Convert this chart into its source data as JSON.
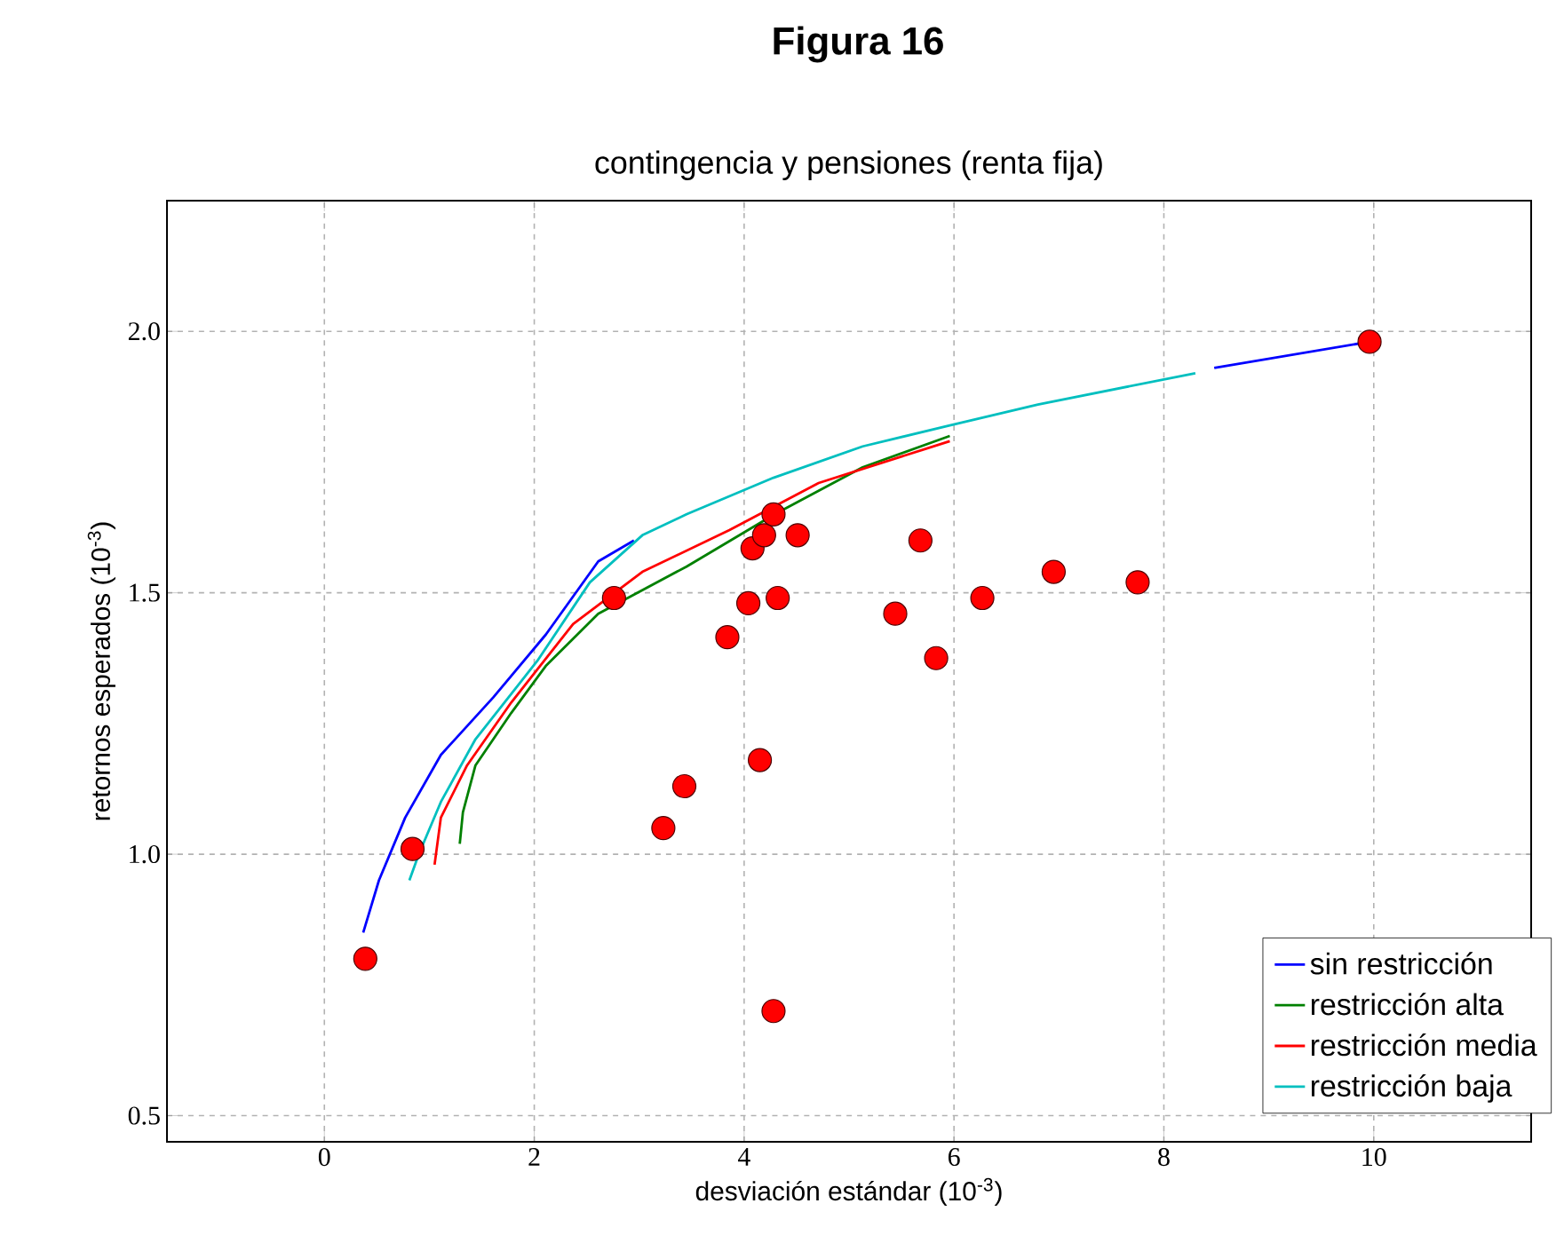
{
  "chart_data": {
    "type": "line",
    "title": "Figura 16",
    "subtitle": "contingencia y pensiones (renta fija)",
    "xlabel": "desviación estándar (10$^{-3}$)",
    "ylabel": "retornos esperados (10$^{-3}$)",
    "xlim": [
      -1.5,
      11.5
    ],
    "ylim": [
      0.45,
      2.25
    ],
    "xticks": [
      0,
      2,
      4,
      6,
      8,
      10
    ],
    "yticks": [
      {
        "value": 0.5,
        "label": "0.5"
      },
      {
        "value": 1.0,
        "label": "1.0"
      },
      {
        "value": 1.5,
        "label": "1.5"
      },
      {
        "value": 2.0,
        "label": "2.0"
      }
    ],
    "grid": true,
    "legend": "bottom right",
    "series": [
      {
        "name": "sin restricción",
        "color": "#0000ff",
        "x": [
          0.37,
          0.52,
          0.77,
          1.11,
          1.61,
          2.11,
          2.61,
          2.95,
          3.45,
          4.28,
          5.13,
          5.96,
          6.8,
          8.48,
          9.96
        ],
        "values": [
          0.85,
          0.95,
          1.07,
          1.19,
          1.3,
          1.42,
          1.56,
          1.6,
          null,
          null,
          null,
          null,
          null,
          1.93,
          1.98
        ]
      },
      {
        "name": "restricción alta",
        "color": "#008000",
        "x": [
          1.29,
          1.32,
          1.44,
          1.78,
          2.11,
          2.61,
          3.45,
          4.29,
          5.13,
          5.96
        ],
        "values": [
          1.02,
          1.08,
          1.17,
          1.27,
          1.36,
          1.46,
          1.55,
          1.65,
          1.74,
          1.8
        ]
      },
      {
        "name": "restricción media",
        "color": "#ff0000",
        "x": [
          1.05,
          1.11,
          1.36,
          1.78,
          2.37,
          3.03,
          3.86,
          4.71,
          5.96
        ],
        "values": [
          0.98,
          1.07,
          1.17,
          1.29,
          1.44,
          1.54,
          1.62,
          1.71,
          1.79
        ]
      },
      {
        "name": "restricción baja",
        "color": "#00bfbf",
        "x": [
          0.81,
          0.9,
          1.11,
          1.44,
          2.03,
          2.53,
          3.03,
          3.45,
          4.28,
          5.13,
          5.96,
          6.8,
          8.3
        ],
        "values": [
          0.95,
          1.0,
          1.1,
          1.22,
          1.37,
          1.52,
          1.61,
          1.65,
          1.72,
          1.78,
          1.82,
          1.86,
          1.92
        ]
      },
      {
        "type": "scatter",
        "marker": "circle",
        "color": "#ff0000",
        "x": [
          0.39,
          0.84,
          2.76,
          3.23,
          3.43,
          3.84,
          4.04,
          4.08,
          4.19,
          4.28,
          4.15,
          4.32,
          4.51,
          4.28,
          5.44,
          5.68,
          5.83,
          6.27,
          6.95,
          7.75,
          9.96
        ],
        "values": [
          0.8,
          1.01,
          1.49,
          1.05,
          1.13,
          1.415,
          1.48,
          1.585,
          1.61,
          1.65,
          1.18,
          1.49,
          1.61,
          0.7,
          1.46,
          1.6,
          1.375,
          1.49,
          1.54,
          1.52,
          1.98
        ]
      }
    ]
  }
}
